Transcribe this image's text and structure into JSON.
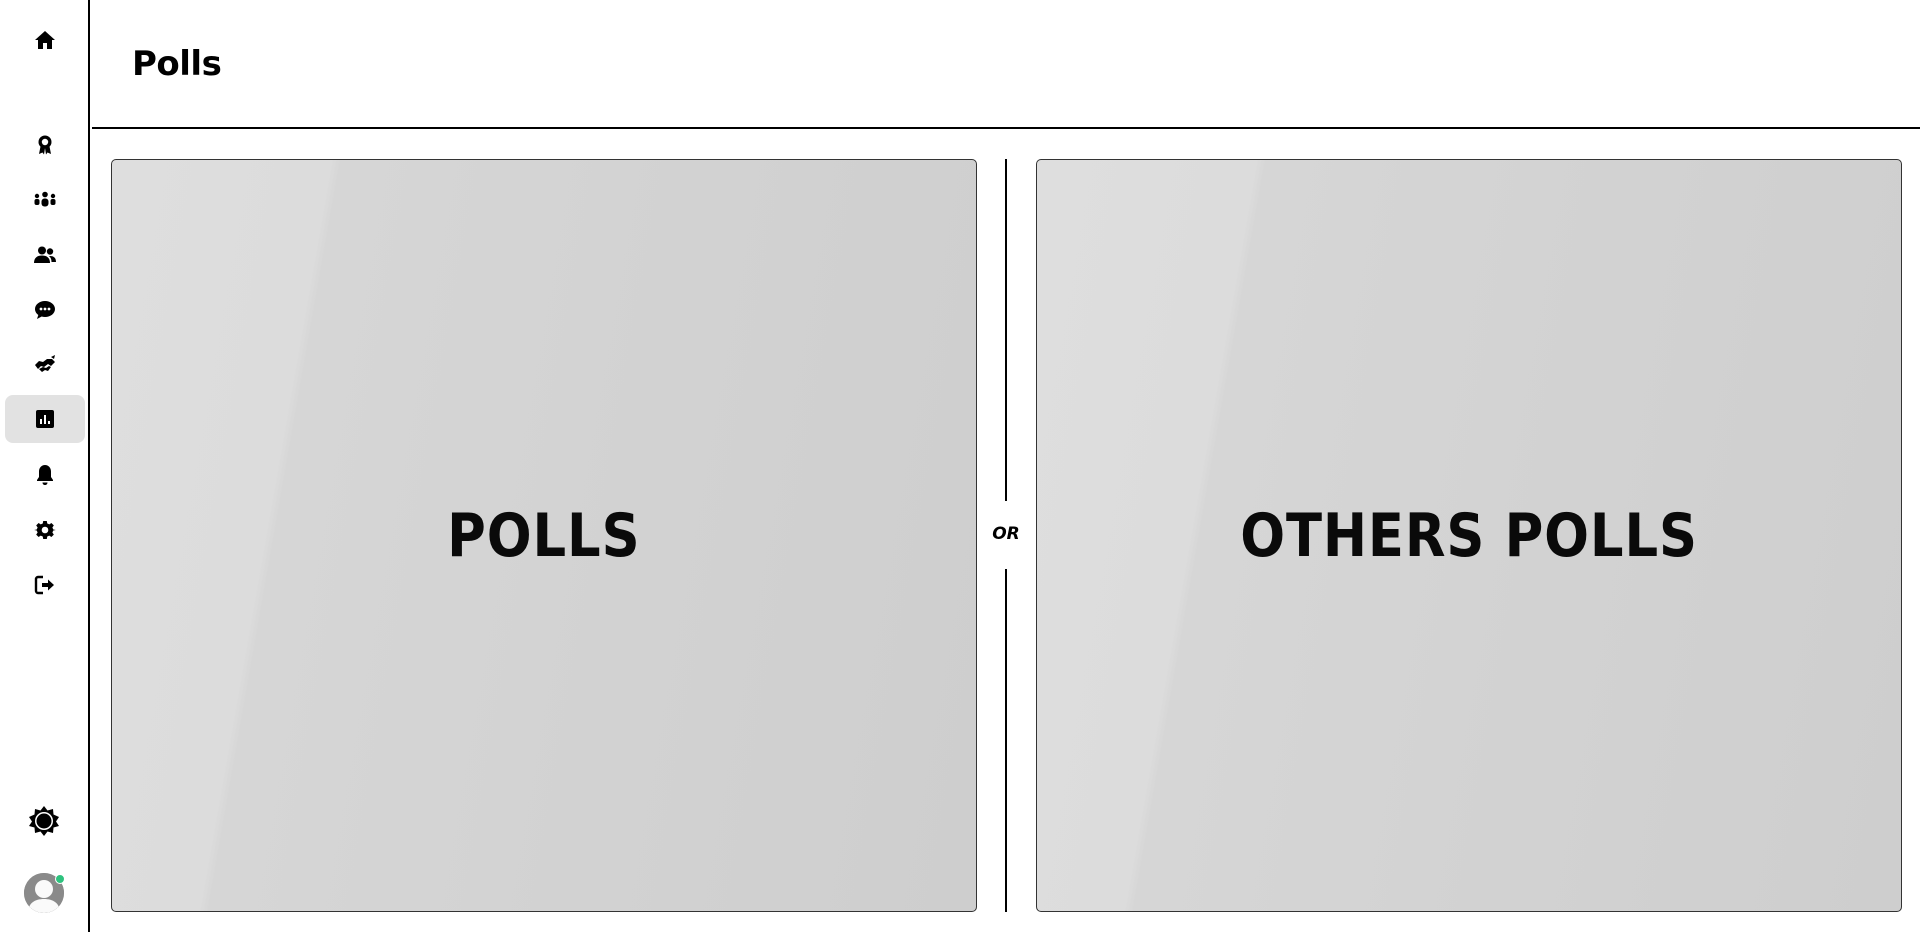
{
  "header": {
    "title": "Polls"
  },
  "sidebar": {
    "items": [
      {
        "name": "home",
        "icon": "home-icon"
      },
      {
        "name": "badges",
        "icon": "award-icon"
      },
      {
        "name": "groups",
        "icon": "groups-icon"
      },
      {
        "name": "friends",
        "icon": "users-icon"
      },
      {
        "name": "messages",
        "icon": "chat-icon"
      },
      {
        "name": "handshake",
        "icon": "handshake-icon"
      },
      {
        "name": "polls",
        "icon": "poll-icon",
        "active": true
      },
      {
        "name": "notifications",
        "icon": "bell-icon"
      },
      {
        "name": "settings",
        "icon": "gear-icon"
      },
      {
        "name": "logout",
        "icon": "logout-icon"
      }
    ],
    "theme_toggle_icon": "sun-icon",
    "avatar_status_color": "#2ec27e"
  },
  "main": {
    "polls_card_label": "POLLS",
    "divider_text": "OR",
    "others_polls_card_label": "OTHERS POLLS"
  },
  "colors": {
    "active_nav_bg": "#e2e2e2",
    "card_bg": "#d4d4d4",
    "border": "#000000"
  }
}
